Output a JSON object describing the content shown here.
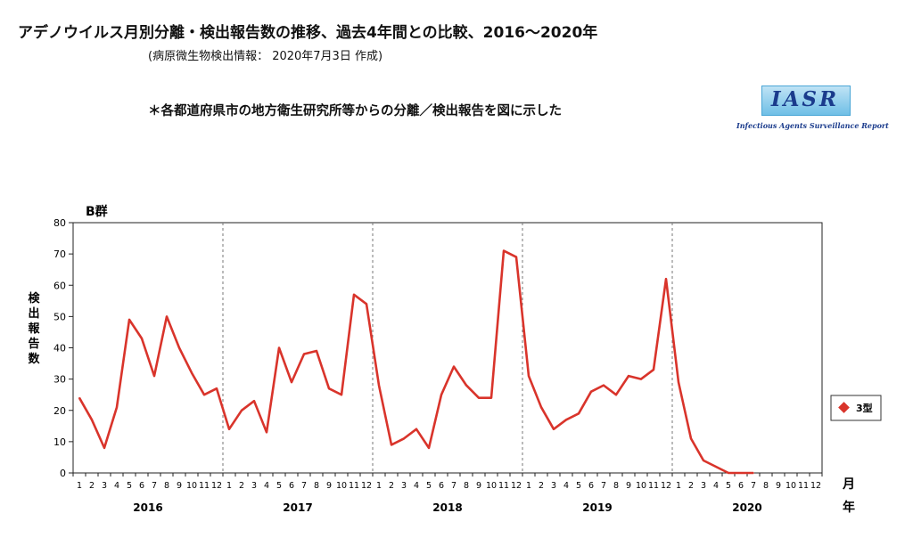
{
  "header": {
    "title": "アデノウイルス月別分離・検出報告数の推移、過去4年間との比較、2016〜2020年",
    "subtitle": "(病原微生物検出情報： 2020年7月3日 作成)",
    "note": "＊各都道府県市の地方衛生研究所等からの分離／検出報告を図に示した"
  },
  "logo": {
    "text": "IASR",
    "sub": "Infectious Agents Surveillance Report"
  },
  "chart_data": {
    "type": "line",
    "title": "B群",
    "ylabel": "検出報告数",
    "xlabel_month": "月",
    "xlabel_year": "年",
    "ylim": [
      0,
      80
    ],
    "yticks": [
      0,
      10,
      20,
      30,
      40,
      50,
      60,
      70,
      80
    ],
    "years": [
      "2016",
      "2017",
      "2018",
      "2019",
      "2020"
    ],
    "months": [
      "1",
      "2",
      "3",
      "4",
      "5",
      "6",
      "7",
      "8",
      "9",
      "10",
      "11",
      "12"
    ],
    "grid": false,
    "legend_position": "right",
    "series": [
      {
        "name": "3型",
        "color": "#d9342b",
        "values": [
          24,
          17,
          8,
          21,
          49,
          43,
          31,
          50,
          40,
          32,
          25,
          27,
          14,
          20,
          23,
          13,
          40,
          29,
          38,
          39,
          27,
          25,
          57,
          54,
          28,
          9,
          11,
          14,
          8,
          25,
          34,
          28,
          24,
          24,
          71,
          69,
          31,
          21,
          14,
          17,
          19,
          26,
          28,
          25,
          31,
          30,
          33,
          62,
          29,
          11,
          4,
          2,
          0,
          0,
          0
        ]
      }
    ]
  }
}
